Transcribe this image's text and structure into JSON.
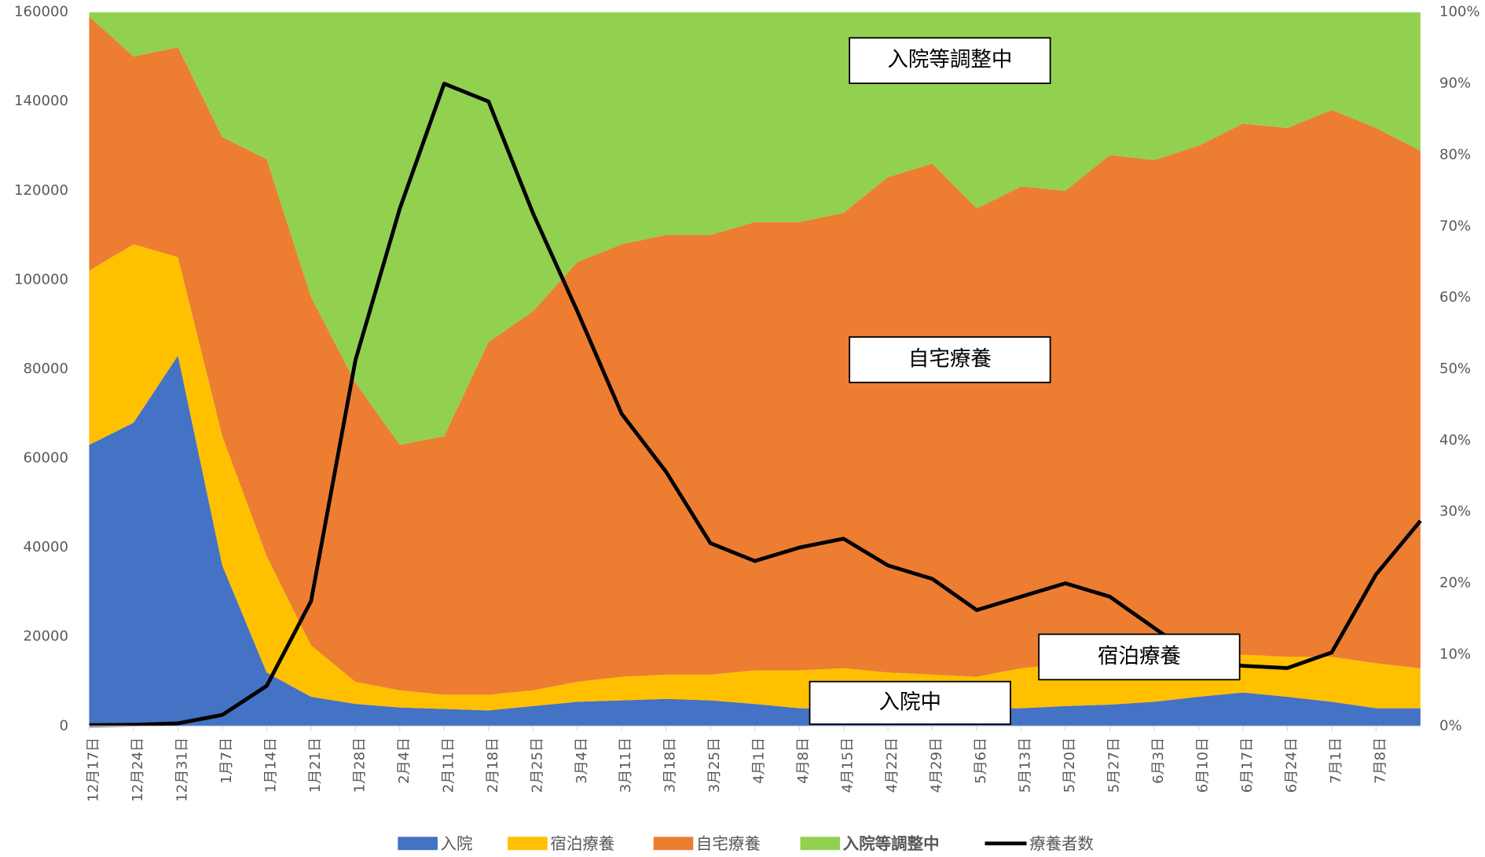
{
  "chart_data": {
    "type": "stacked_area_line",
    "categories": [
      "12月17日",
      "12月24日",
      "12月31日",
      "1月7日",
      "1月14日",
      "1月21日",
      "1月28日",
      "2月4日",
      "2月11日",
      "2月18日",
      "2月25日",
      "3月4日",
      "3月11日",
      "3月18日",
      "3月25日",
      "4月1日",
      "4月8日",
      "4月15日",
      "4月22日",
      "4月29日",
      "5月6日",
      "5月13日",
      "5月20日",
      "5月27日",
      "6月3日",
      "6月10日",
      "6月17日",
      "6月24日",
      "7月1日",
      "7月8日",
      null
    ],
    "series": [
      {
        "name": "入院",
        "color": "#4472c4",
        "axis": "y2",
        "values": [
          39.4,
          42.5,
          51.9,
          22.5,
          7.5,
          4.1,
          3.1,
          2.6,
          2.4,
          2.2,
          2.8,
          3.4,
          3.6,
          3.8,
          3.6,
          3.1,
          2.5,
          2.4,
          2.4,
          2.4,
          2.5,
          2.5,
          2.8,
          3.0,
          3.4,
          4.1,
          4.7,
          4.1,
          3.4,
          2.5,
          2.5
        ]
      },
      {
        "name": "宿泊療養",
        "color": "#ffc000",
        "axis": "y2",
        "values": [
          24.4,
          25.0,
          13.8,
          18.1,
          16.3,
          7.2,
          3.1,
          2.4,
          2.0,
          2.2,
          2.2,
          2.8,
          3.3,
          3.4,
          3.6,
          4.7,
          5.3,
          5.7,
          5.1,
          4.8,
          4.4,
          5.6,
          5.9,
          5.8,
          5.0,
          4.7,
          5.3,
          5.6,
          6.3,
          6.3,
          5.6
        ]
      },
      {
        "name": "自宅療養",
        "color": "#ed7d31",
        "axis": "y2",
        "values": [
          35.6,
          26.3,
          29.4,
          41.9,
          55.6,
          48.8,
          41.9,
          34.4,
          36.2,
          49.4,
          53.1,
          58.8,
          60.6,
          61.6,
          61.6,
          62.8,
          62.8,
          63.8,
          69.4,
          71.6,
          65.6,
          67.5,
          66.3,
          71.2,
          70.9,
          72.5,
          74.4,
          74.1,
          76.6,
          75.0,
          72.5
        ]
      },
      {
        "name": "入院等調整中",
        "color": "#92d050",
        "axis": "y2",
        "values": [
          0.6,
          6.2,
          4.9,
          17.5,
          20.6,
          39.9,
          51.9,
          60.6,
          59.4,
          46.2,
          41.9,
          35.0,
          32.5,
          31.2,
          31.2,
          29.4,
          29.4,
          28.1,
          23.1,
          21.2,
          27.5,
          24.4,
          25.0,
          20.0,
          20.7,
          18.7,
          15.6,
          16.2,
          13.7,
          16.2,
          19.4
        ]
      },
      {
        "name": "療養者数",
        "color": "#000000",
        "values": [
          200,
          300,
          600,
          2500,
          9000,
          28000,
          82000,
          116000,
          144000,
          140000,
          115000,
          93000,
          70000,
          57000,
          41000,
          37000,
          40000,
          42000,
          36000,
          33000,
          26000,
          29000,
          32000,
          29000,
          22000,
          15000,
          13500,
          13000,
          16500,
          34000,
          46000
        ]
      }
    ],
    "ylim": [
      0,
      160000
    ],
    "yticks": [
      0,
      20000,
      40000,
      60000,
      80000,
      100000,
      120000,
      140000,
      160000
    ],
    "y2lim": [
      0,
      100
    ],
    "y2ticks": [
      {
        "value": 0,
        "label": "0%"
      },
      {
        "value": 10,
        "label": "10%"
      },
      {
        "value": 20,
        "label": "20%"
      },
      {
        "value": 30,
        "label": "30%"
      },
      {
        "value": 40,
        "label": "40%"
      },
      {
        "value": 50,
        "label": "50%"
      },
      {
        "value": 60,
        "label": "60%"
      },
      {
        "value": 70,
        "label": "70%"
      },
      {
        "value": 80,
        "label": "80%"
      },
      {
        "value": 90,
        "label": "90%"
      },
      {
        "value": 100,
        "label": "100%"
      }
    ],
    "annotations": [
      "入院等調整中",
      "自宅療養",
      "宿泊療養",
      "入院中"
    ]
  }
}
